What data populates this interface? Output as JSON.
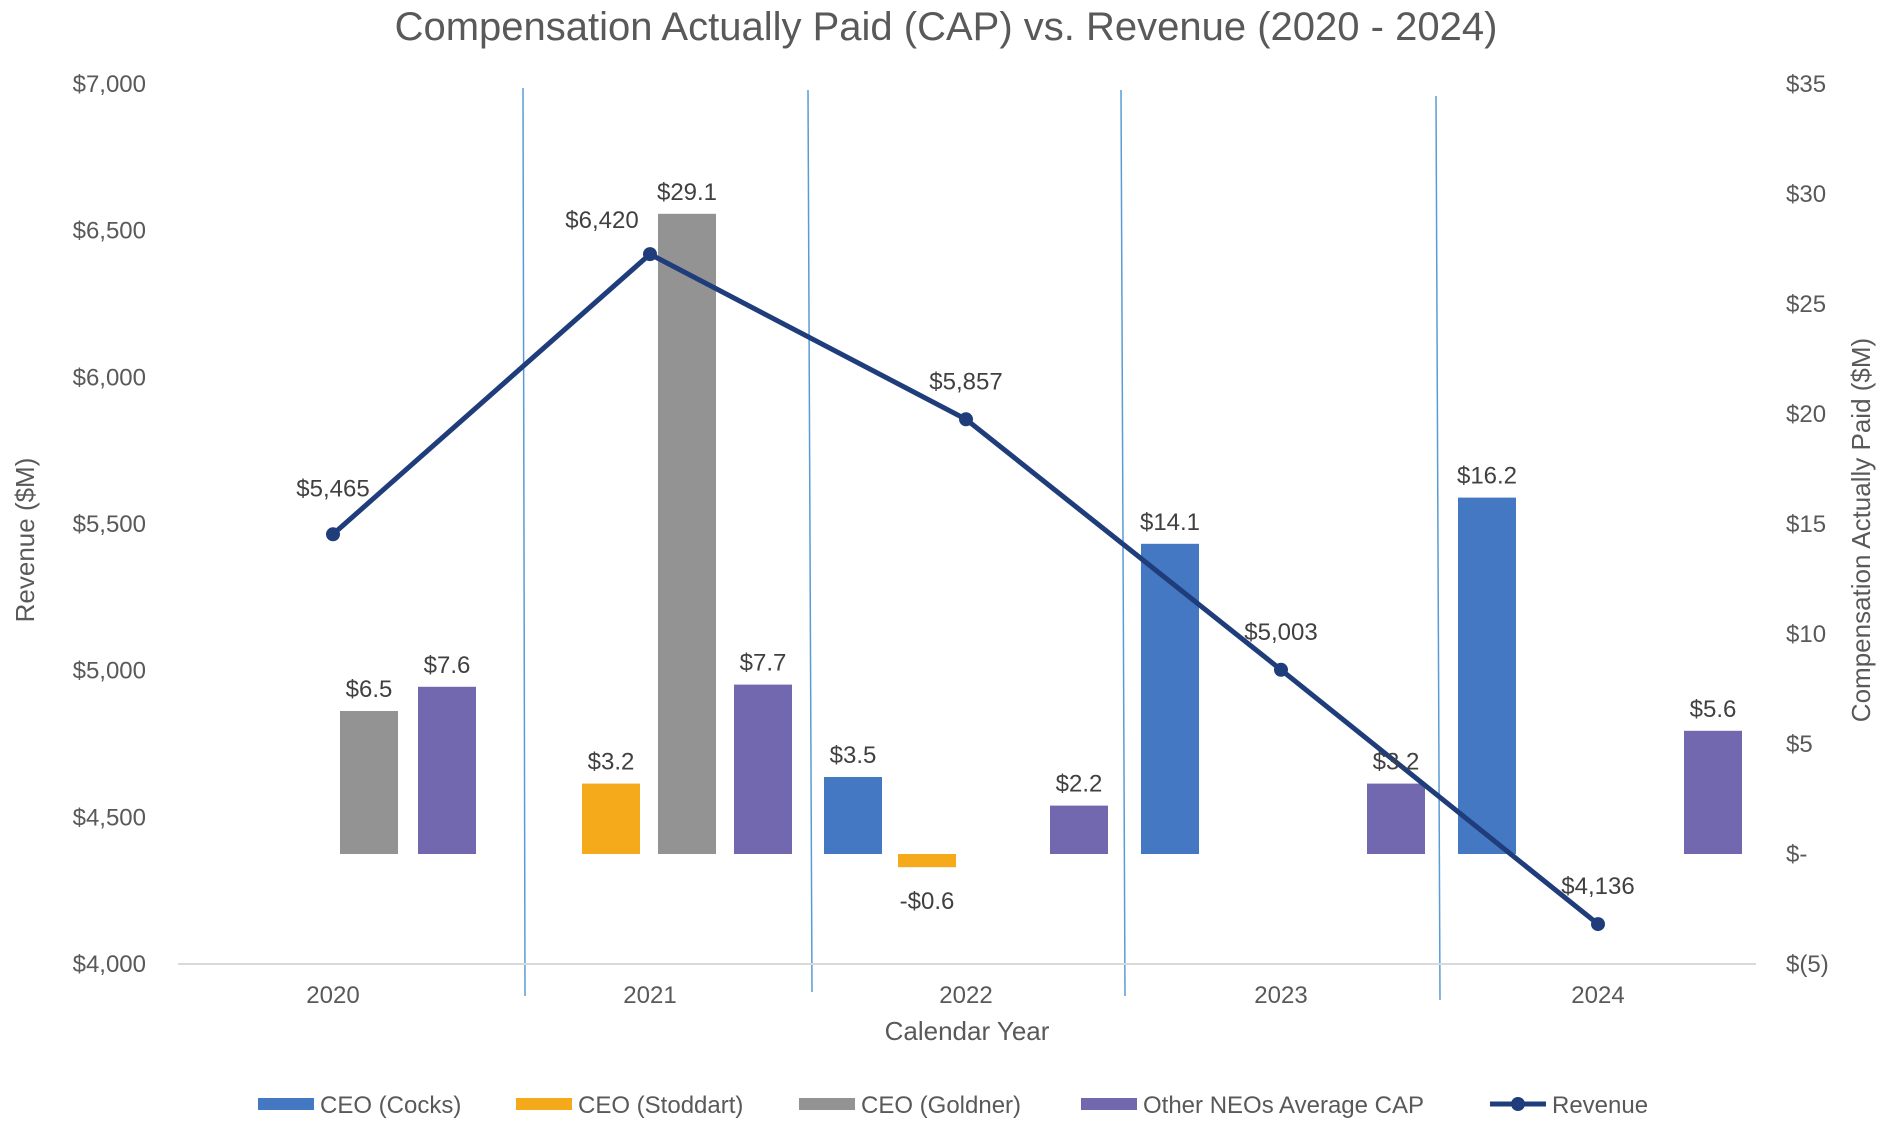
{
  "chart_data": {
    "type": "bar",
    "title": "Compensation Actually Paid (CAP) vs. Revenue (2020 - 2024)",
    "xlabel": "Calendar Year",
    "ylabel_left": "Revenue  ($M)",
    "ylabel_right": "Compensation Actually Paid ($M)",
    "categories": [
      "2020",
      "2021",
      "2022",
      "2023",
      "2024"
    ],
    "left_axis": {
      "min": 4000,
      "max": 7000,
      "step": 500,
      "tick_labels": [
        "$4,000",
        "$4,500",
        "$5,000",
        "$5,500",
        "$6,000",
        "$6,500",
        "$7,000"
      ]
    },
    "right_axis": {
      "min": -5,
      "max": 35,
      "step": 5,
      "tick_labels": [
        "$(5)",
        "$-",
        "$5",
        "$10",
        "$15",
        "$20",
        "$25",
        "$30",
        "$35"
      ]
    },
    "bars": [
      {
        "series": "CEO (Goldner)",
        "year": "2020",
        "value": 6.5,
        "label": "$6.5"
      },
      {
        "series": "Other NEOs Average CAP",
        "year": "2020",
        "value": 7.6,
        "label": "$7.6"
      },
      {
        "series": "CEO (Stoddart)",
        "year": "2021",
        "value": 3.2,
        "label": "$3.2"
      },
      {
        "series": "CEO (Goldner)",
        "year": "2021",
        "value": 29.1,
        "label": "$29.1"
      },
      {
        "series": "Other NEOs Average CAP",
        "year": "2021",
        "value": 7.7,
        "label": "$7.7"
      },
      {
        "series": "CEO (Cocks)",
        "year": "2022",
        "value": 3.5,
        "label": "$3.5"
      },
      {
        "series": "CEO (Stoddart)",
        "year": "2022",
        "value": -0.6,
        "label": "-$0.6"
      },
      {
        "series": "Other NEOs Average CAP",
        "year": "2022",
        "value": 2.2,
        "label": "$2.2"
      },
      {
        "series": "CEO (Cocks)",
        "year": "2023",
        "value": 14.1,
        "label": "$14.1"
      },
      {
        "series": "Other NEOs Average CAP",
        "year": "2023",
        "value": 3.2,
        "label": "$3.2"
      },
      {
        "series": "CEO (Cocks)",
        "year": "2024",
        "value": 16.2,
        "label": "$16.2"
      },
      {
        "series": "Other NEOs Average CAP",
        "year": "2024",
        "value": 5.6,
        "label": "$5.6"
      }
    ],
    "revenue": {
      "name": "Revenue",
      "values": [
        5465,
        6420,
        5857,
        5003,
        4136
      ],
      "labels": [
        "$5,465",
        "$6,420",
        "$5,857",
        "$5,003",
        "$4,136"
      ]
    },
    "legend": [
      {
        "name": "CEO (Cocks)",
        "color": "#4478C2",
        "type": "bar"
      },
      {
        "name": "CEO (Stoddart)",
        "color": "#F5AA1C",
        "type": "bar"
      },
      {
        "name": "CEO (Goldner)",
        "color": "#939393",
        "type": "bar"
      },
      {
        "name": "Other NEOs Average CAP",
        "color": "#7168B0",
        "type": "bar"
      },
      {
        "name": "Revenue",
        "color": "#1F3D7A",
        "type": "line"
      }
    ],
    "legend_position": "bottom"
  }
}
